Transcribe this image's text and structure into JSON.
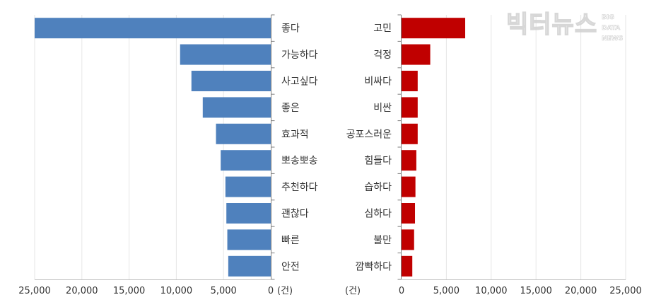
{
  "chart_data": [
    {
      "type": "bar",
      "orientation": "horizontal",
      "direction": "right-to-left",
      "color": "#4f81bd",
      "categories": [
        "좋다",
        "가능하다",
        "사고싶다",
        "좋은",
        "효과적",
        "뽀송뽀송",
        "추천하다",
        "괜찮다",
        "빠른",
        "안전"
      ],
      "values": [
        25000,
        9600,
        8400,
        7200,
        5800,
        5300,
        4800,
        4700,
        4600,
        4500
      ],
      "xlim": [
        0,
        25000
      ],
      "ticks": [
        "25,000",
        "20,000",
        "15,000",
        "10,000",
        "5,000",
        "0"
      ],
      "unit": "(건)",
      "grid": true
    },
    {
      "type": "bar",
      "orientation": "horizontal",
      "direction": "left-to-right",
      "color": "#c00000",
      "categories": [
        "고민",
        "걱정",
        "비싸다",
        "비싼",
        "공포스러운",
        "힘들다",
        "습하다",
        "심하다",
        "불만",
        "깜빡하다"
      ],
      "values": [
        7100,
        3200,
        1800,
        1800,
        1800,
        1650,
        1550,
        1500,
        1400,
        1200
      ],
      "xlim": [
        0,
        25000
      ],
      "ticks": [
        "0",
        "5,000",
        "10,000",
        "15,000",
        "20,000",
        "25,000"
      ],
      "unit": "(건)",
      "grid": true
    }
  ],
  "watermark": {
    "main": "빅터뉴스",
    "sub": [
      "BIG",
      "DATA",
      "NEWS"
    ]
  }
}
